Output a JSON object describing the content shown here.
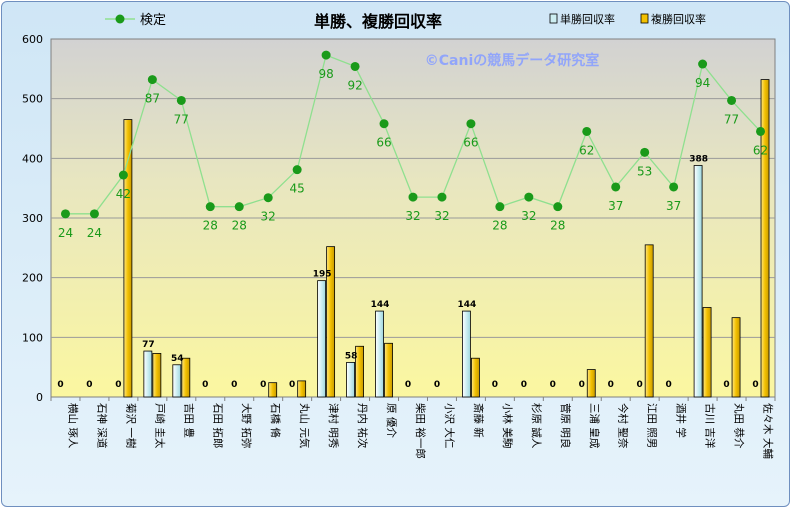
{
  "chart_data": {
    "type": "bar",
    "title": "単勝、複勝回収率",
    "watermark": "©Caniの競馬データ研究室",
    "ylim": [
      0,
      600
    ],
    "yticks": [
      0,
      100,
      200,
      300,
      400,
      500,
      600
    ],
    "legend_line_label": "検定",
    "legend_bar1_label": "単勝回収率",
    "legend_bar2_label": "複勝回収率",
    "colors": {
      "win_bar": "#cdeef2",
      "place_bar": "#f2c000",
      "line": "#8fe08f",
      "marker": "#1a9a1a",
      "line_label": "#1a9a1a"
    },
    "categories": [
      "横山 琢人",
      "石神 深道",
      "菊沢 一樹",
      "戸崎 圭太",
      "吉田 豊",
      "石田 拓郎",
      "大野 拓弥",
      "石橋 脩",
      "丸山 元気",
      "津村 明秀",
      "丹内 祐次",
      "原 優介",
      "柴田 裕一郎",
      "小沢 大仁",
      "斎藤 新",
      "小林 美駒",
      "杉原 誠人",
      "菅原 明良",
      "三浦 皇成",
      "今村 聖奈",
      "江田 照男",
      "酒井 学",
      "古川 吉洋",
      "丸田 恭介",
      "佐々木 大輔"
    ],
    "series": [
      {
        "name": "単勝回収率",
        "values": [
          0,
          0,
          0,
          77,
          54,
          0,
          0,
          0,
          0,
          195,
          58,
          144,
          0,
          0,
          144,
          0,
          0,
          0,
          0,
          0,
          0,
          0,
          388,
          0,
          0
        ]
      },
      {
        "name": "複勝回収率",
        "values": [
          0,
          0,
          465,
          73,
          65,
          0,
          0,
          24,
          27,
          252,
          85,
          90,
          0,
          0,
          65,
          0,
          0,
          0,
          46,
          0,
          255,
          0,
          150,
          133,
          532
        ]
      },
      {
        "name": "検定",
        "values": [
          24,
          24,
          42,
          87,
          77,
          28,
          28,
          32,
          45,
          98,
          92,
          66,
          32,
          32,
          66,
          28,
          32,
          28,
          62,
          37,
          53,
          37,
          94,
          77,
          62
        ],
        "y_positions": [
          307,
          307,
          372,
          532,
          497,
          319,
          319,
          334,
          381,
          573,
          554,
          458,
          335,
          335,
          458,
          319,
          335,
          319,
          445,
          352,
          410,
          352,
          558,
          497,
          445
        ]
      }
    ]
  }
}
